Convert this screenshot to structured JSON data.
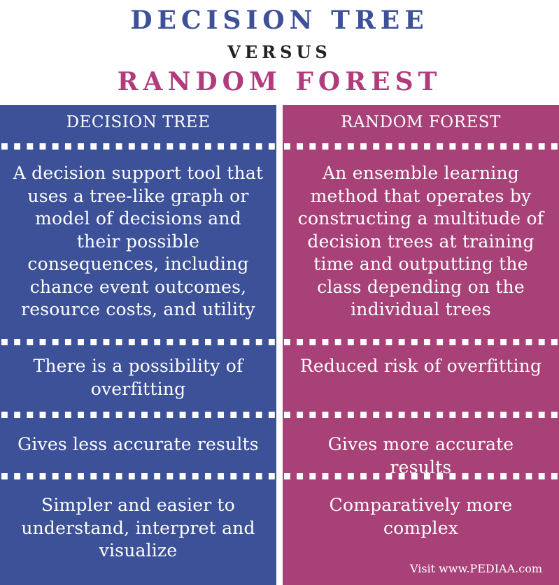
{
  "header": {
    "title_primary": "DECISION TREE",
    "versus": "VERSUS",
    "title_secondary": "RANDOM FOREST"
  },
  "colors": {
    "decision_tree": "#3d5199",
    "random_forest": "#a84177",
    "versus_text": "#232323",
    "random_forest_title": "#b03c7c"
  },
  "comparison": {
    "left_heading": "DECISION TREE",
    "right_heading": "RANDOM FOREST",
    "rows": [
      {
        "left": "A decision support tool that uses a tree-like graph or model of decisions and their possible consequences, including chance event outcomes, resource costs, and utility",
        "right": "An ensemble learning method that operates by constructing a multitude of decision trees at training time and outputting the class depending on the individual trees"
      },
      {
        "left": "There is a possibility of overfitting",
        "right": "Reduced risk of overfitting"
      },
      {
        "left": "Gives less accurate results",
        "right": "Gives more accurate results"
      },
      {
        "left": "Simpler and easier to understand, interpret and visualize",
        "right": "Comparatively more complex"
      }
    ]
  },
  "footer": {
    "source": "Visit www.PEDIAA.com"
  }
}
